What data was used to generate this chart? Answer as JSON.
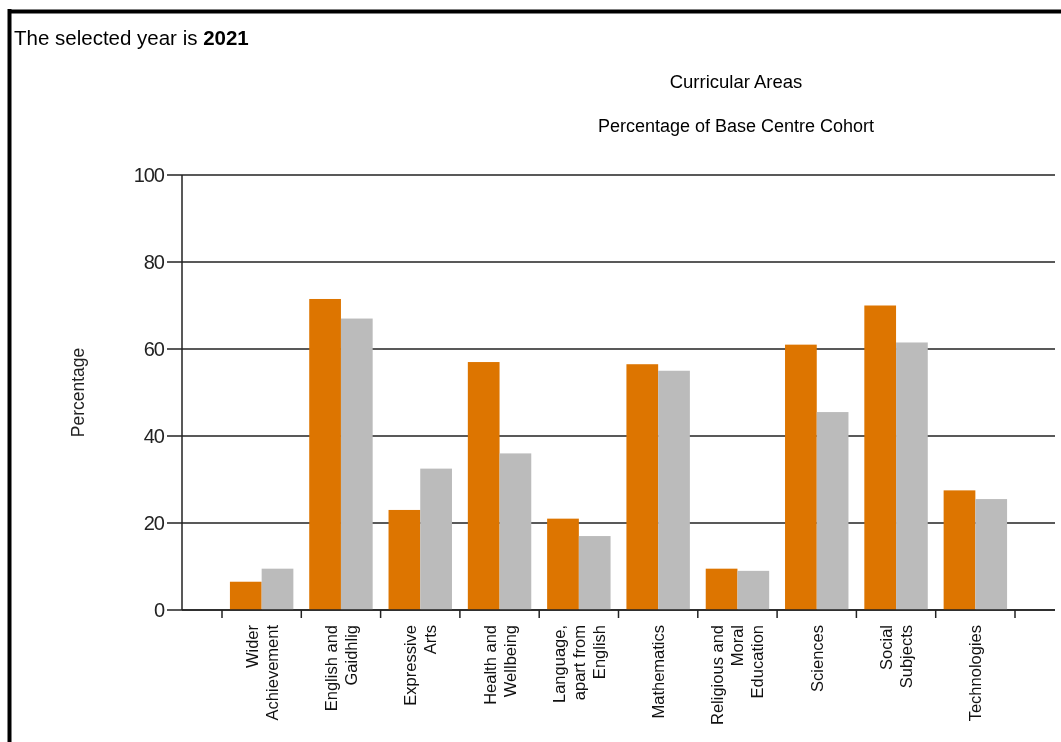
{
  "chart_data": {
    "type": "bar",
    "title": "Curricular Areas",
    "subtitle": "Percentage of Base Centre Cohort",
    "ylabel": "Percentage",
    "annotations": [
      "The selected year is 2021"
    ],
    "categories": [
      "Wider Achievement",
      "English and Gaidhlig",
      "Expressive Arts",
      "Health and Wellbeing",
      "Language, apart from English",
      "Mathematics",
      "Religious and Moral Education",
      "Sciences",
      "Social Subjects",
      "Technologies"
    ],
    "series": [
      {
        "color": "#dd7500",
        "values": [
          6.5,
          71.5,
          23,
          57,
          21,
          56.5,
          9.5,
          61,
          70,
          27.5
        ]
      },
      {
        "color": "#bbbbbb",
        "values": [
          9.5,
          67,
          32.5,
          36,
          17,
          55,
          9,
          45.5,
          61.5,
          25.5
        ]
      }
    ],
    "ylim": [
      0,
      100
    ],
    "yticks": [
      0,
      20,
      40,
      60,
      80,
      100
    ],
    "grid": "y"
  }
}
